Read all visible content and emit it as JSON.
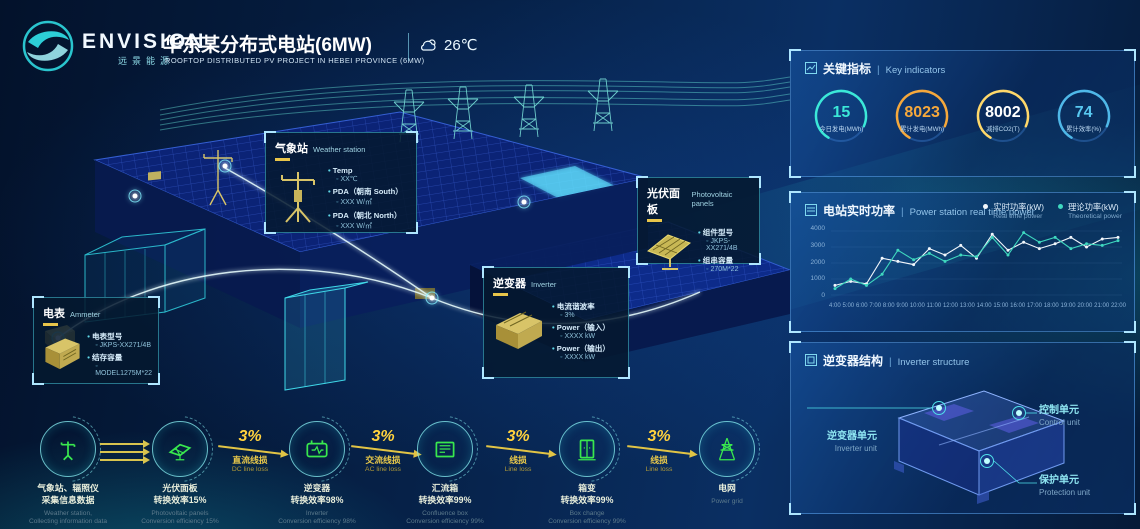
{
  "header": {
    "brand": "ENVISION",
    "brand_cn": "远景能源",
    "title": "华东某分布式电站(6MW)",
    "subtitle": "ROOFTOP DISTRIBUTED PV PROJECT IN HEBEI PROVINCE (6MW)",
    "temperature": "26℃"
  },
  "panels": {
    "key_indicators": {
      "title_cn": "关键指标",
      "title_en": "Key indicators",
      "gauges": [
        {
          "value": "15",
          "label": "今日发电(MWh)",
          "arc_color": "#3be8d8",
          "value_color": "#3be8d8"
        },
        {
          "value": "8023",
          "label": "累计发电(MWh)",
          "arc_color": "#f5a83c",
          "value_color": "#f5a83c"
        },
        {
          "value": "8002",
          "label": "减排CO2(T)",
          "arc_color": "#ffd86a",
          "value_color": "#ffffff"
        },
        {
          "value": "74",
          "label": "累计效率(%)",
          "arc_color": "#4fb8e8",
          "value_color": "#58c8f0"
        }
      ]
    },
    "power_chart": {
      "title_cn": "电站实时功率",
      "title_en": "Power station real time power",
      "legend": [
        {
          "label": "实时功率(kW)",
          "sub": "Real time power",
          "color": "#f2f7fc"
        },
        {
          "label": "理论功率(kW)",
          "sub": "Theoretical power",
          "color": "#3fd8bf"
        }
      ]
    },
    "inverter_structure": {
      "title_cn": "逆变器结构",
      "title_en": "Inverter structure",
      "callouts": [
        {
          "cn": "逆变器单元",
          "en": "Inverter unit"
        },
        {
          "cn": "控制单元",
          "en": "Control unit"
        },
        {
          "cn": "保护单元",
          "en": "Protection unit"
        }
      ]
    }
  },
  "scene": {
    "callouts": {
      "weather": {
        "title_cn": "气象站",
        "title_en": "Weather station",
        "items": [
          {
            "label": "Temp",
            "value": "XX℃"
          },
          {
            "label": "PDA（朝南 South）",
            "value": "XXX W/㎡"
          },
          {
            "label": "PDA（朝北 North）",
            "value": "XXX W/㎡"
          }
        ]
      },
      "pv": {
        "title_cn": "光伏面板",
        "title_en": "Photovoltaic panels",
        "items": [
          {
            "label": "组件型号",
            "value": "JKPS-XX271/4B"
          },
          {
            "label": "组串容量",
            "value": "270M*22"
          }
        ]
      },
      "inverter": {
        "title_cn": "逆变器",
        "title_en": "Inverter",
        "items": [
          {
            "label": "电流谐波率",
            "value": "3%"
          },
          {
            "label": "Power（输入）",
            "value": "XXXX kW"
          },
          {
            "label": "Power（输出）",
            "value": "XXXX kW"
          }
        ]
      },
      "ammeter": {
        "title_cn": "电表",
        "title_en": "Ammeter",
        "items": [
          {
            "label": "电表型号",
            "value": "JKPS-XX271/4B"
          },
          {
            "label": "结存容量",
            "value": "MODEL1275M*22"
          }
        ]
      }
    }
  },
  "flow": {
    "steps": [
      {
        "icon": "weather-station",
        "cn1": "气象站、辐照仪",
        "cn2": "采集信息数据",
        "en1": "Weather station,",
        "en2": "Collecting information data"
      },
      {
        "icon": "pv-panels",
        "cn1": "光伏面板",
        "cn2": "转换效率15%",
        "en1": "Photovoltaic panels",
        "en2": "Conversion efficiency 15%"
      },
      {
        "icon": "inverter",
        "cn1": "逆变器",
        "cn2": "转换效率98%",
        "en1": "Inverter",
        "en2": "Conversion efficiency 98%"
      },
      {
        "icon": "confluence-box",
        "cn1": "汇流箱",
        "cn2": "转换效率99%",
        "en1": "Confluence box",
        "en2": "Conversion efficiency 99%"
      },
      {
        "icon": "box-transformer",
        "cn1": "箱变",
        "cn2": "转换效率99%",
        "en1": "Box change",
        "en2": "Conversion efficiency 99%"
      },
      {
        "icon": "power-grid",
        "cn1": "电网",
        "cn2": "",
        "en1": "Power grid",
        "en2": ""
      }
    ],
    "arrows": [
      {
        "percent": "3%",
        "loss_cn": "直流线损",
        "loss_en": "DC line loss"
      },
      {
        "percent": "3%",
        "loss_cn": "交流线损",
        "loss_en": "AC line loss"
      },
      {
        "percent": "3%",
        "loss_cn": "线损",
        "loss_en": "Line loss"
      },
      {
        "percent": "3%",
        "loss_cn": "线损",
        "loss_en": "Line loss"
      }
    ]
  },
  "chart_data": {
    "type": "line",
    "title": "电站实时功率 | Power station real time power",
    "x": [
      "4:00",
      "5:00",
      "6:00",
      "7:00",
      "8:00",
      "9:00",
      "10:00",
      "11:00",
      "12:00",
      "13:00",
      "14:00",
      "15:00",
      "16:00",
      "17:00",
      "18:00",
      "19:00",
      "20:00",
      "21:00",
      "22:00"
    ],
    "series": [
      {
        "name": "实时功率(kW)",
        "color": "#f2f7fc",
        "values": [
          600,
          850,
          700,
          2300,
          2100,
          1900,
          2900,
          2500,
          3100,
          2300,
          3800,
          2800,
          3300,
          2900,
          3200,
          3600,
          3000,
          3500,
          3600
        ]
      },
      {
        "name": "理论功率(kW)",
        "color": "#3fd8bf",
        "values": [
          400,
          1000,
          600,
          1300,
          2800,
          2200,
          2600,
          2100,
          2500,
          2400,
          3600,
          2500,
          3900,
          3300,
          3600,
          2900,
          3200,
          3100,
          3400
        ]
      }
    ],
    "ylim": [
      0,
      4000
    ],
    "yticks": [
      0,
      1000,
      2000,
      3000,
      4000
    ],
    "xlabel": "",
    "ylabel": "",
    "grid": true,
    "legend_position": "top-right"
  },
  "colors": {
    "accent_cyan": "#2fd8e0",
    "accent_yellow": "#ffd23e",
    "accent_green": "#35e84a",
    "panel_border": "#5aa0e0"
  }
}
